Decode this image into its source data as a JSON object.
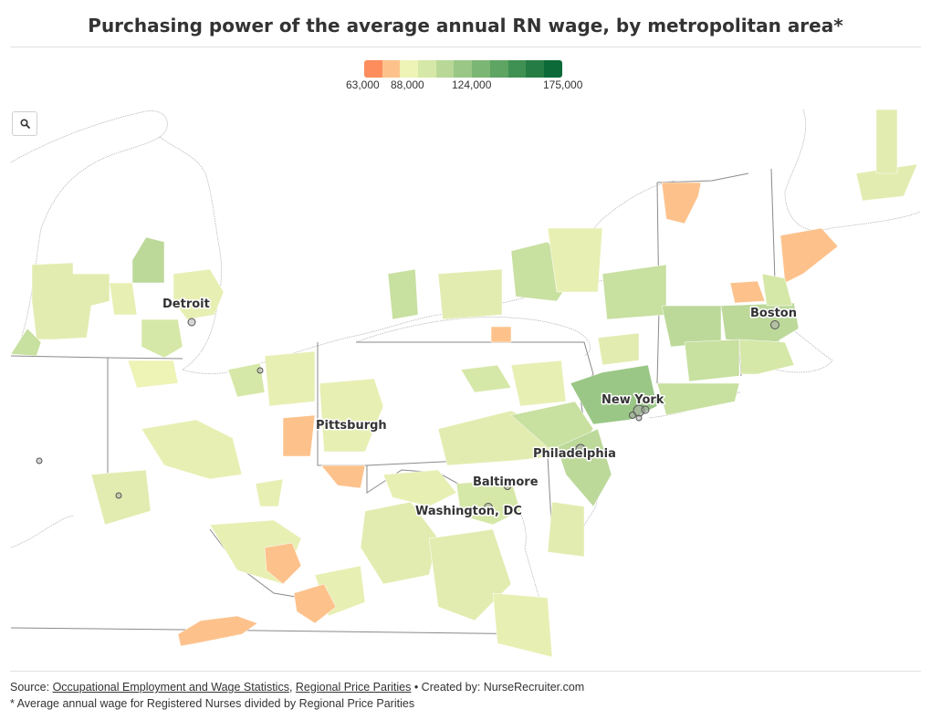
{
  "title": "Purchasing power of the average annual RN wage, by metropolitan area*",
  "legend": {
    "colors": [
      "#fd8d5c",
      "#fdc28c",
      "#eef3b6",
      "#d6e8a8",
      "#b9d897",
      "#9ac786",
      "#7cb674",
      "#5ea463",
      "#3f9053",
      "#257c44",
      "#0b6a37"
    ],
    "ticks": [
      "63,000",
      "88,000",
      "124,000",
      "175,000"
    ]
  },
  "cities": [
    {
      "name": "Detroit"
    },
    {
      "name": "Boston"
    },
    {
      "name": "New York"
    },
    {
      "name": "Pittsburgh"
    },
    {
      "name": "Philadelphia"
    },
    {
      "name": "Baltimore"
    },
    {
      "name": "Washington, DC"
    }
  ],
  "source": {
    "prefix": "Source: ",
    "link1": "Occupational Employment and Wage Statistics",
    "sep": ", ",
    "link2": "Regional Price Parities",
    "suffix": " • Created by: NurseRecruiter.com"
  },
  "note": "* Average annual wage for Registered Nurses divided by Regional Price Parities"
}
